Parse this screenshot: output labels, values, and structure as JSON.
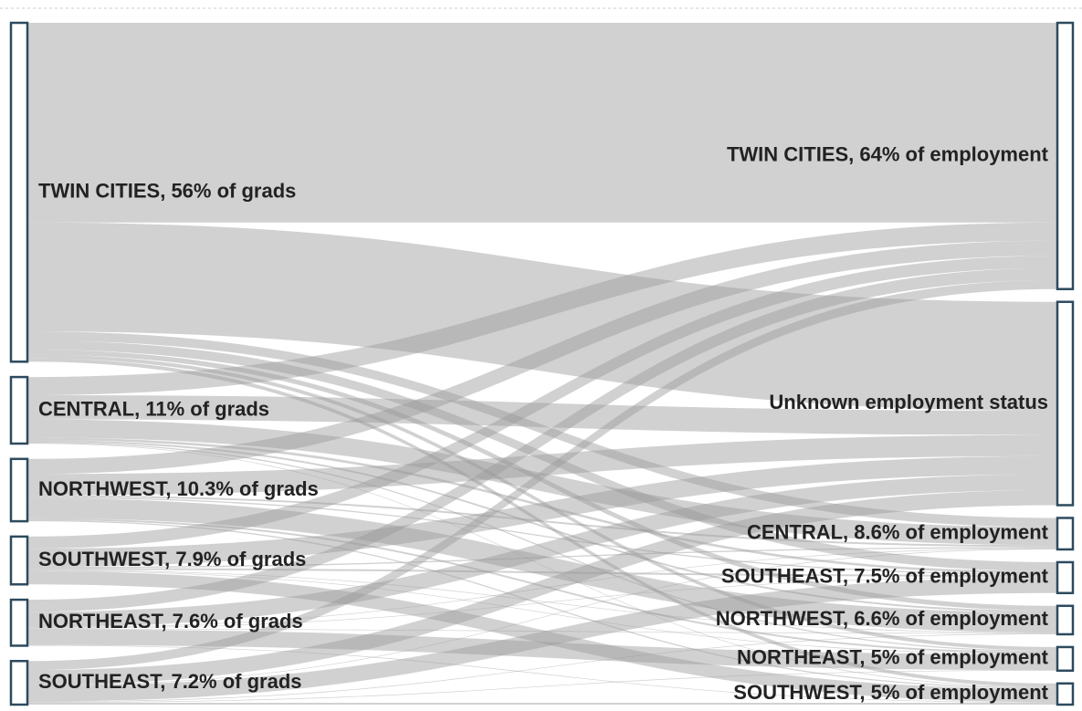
{
  "chart_data": {
    "type": "sankey",
    "sources": [
      "TWIN CITIES, 56% of grads",
      "CENTRAL, 11% of grads",
      "NORTHWEST, 10.3% of grads",
      "SOUTHWEST, 7.9% of grads",
      "NORTHEAST, 7.6% of grads",
      "SOUTHEAST, 7.2% of grads"
    ],
    "targets": [
      "TWIN CITIES, 64% of employment",
      "Unknown employment status",
      "CENTRAL, 8.6% of employment",
      "SOUTHEAST, 7.5% of employment",
      "NORTHWEST, 6.6% of employment",
      "NORTHEAST, 5% of employment",
      "SOUTHWEST, 5% of employment"
    ],
    "links": [
      {
        "source": 0,
        "target": 0,
        "value": 33
      },
      {
        "source": 0,
        "target": 1,
        "value": 18
      },
      {
        "source": 0,
        "target": 2,
        "value": 1.5
      },
      {
        "source": 0,
        "target": 3,
        "value": 1.5
      },
      {
        "source": 0,
        "target": 4,
        "value": 0.8
      },
      {
        "source": 0,
        "target": 5,
        "value": 0.6
      },
      {
        "source": 0,
        "target": 6,
        "value": 0.6
      },
      {
        "source": 1,
        "target": 0,
        "value": 3
      },
      {
        "source": 1,
        "target": 1,
        "value": 4
      },
      {
        "source": 1,
        "target": 2,
        "value": 3
      },
      {
        "source": 1,
        "target": 3,
        "value": 0.4
      },
      {
        "source": 1,
        "target": 4,
        "value": 0.3
      },
      {
        "source": 1,
        "target": 5,
        "value": 0.2
      },
      {
        "source": 1,
        "target": 6,
        "value": 0.1
      },
      {
        "source": 2,
        "target": 0,
        "value": 2.5
      },
      {
        "source": 2,
        "target": 1,
        "value": 3.5
      },
      {
        "source": 2,
        "target": 2,
        "value": 0.3
      },
      {
        "source": 2,
        "target": 3,
        "value": 0.2
      },
      {
        "source": 2,
        "target": 4,
        "value": 3.3
      },
      {
        "source": 2,
        "target": 5,
        "value": 0.3
      },
      {
        "source": 2,
        "target": 6,
        "value": 0.2
      },
      {
        "source": 3,
        "target": 0,
        "value": 2
      },
      {
        "source": 3,
        "target": 1,
        "value": 3
      },
      {
        "source": 3,
        "target": 2,
        "value": 0.2
      },
      {
        "source": 3,
        "target": 3,
        "value": 0.3
      },
      {
        "source": 3,
        "target": 4,
        "value": 0.1
      },
      {
        "source": 3,
        "target": 5,
        "value": 0.1
      },
      {
        "source": 3,
        "target": 6,
        "value": 2.2
      },
      {
        "source": 4,
        "target": 0,
        "value": 2
      },
      {
        "source": 4,
        "target": 1,
        "value": 2.6
      },
      {
        "source": 4,
        "target": 2,
        "value": 0.1
      },
      {
        "source": 4,
        "target": 3,
        "value": 0.1
      },
      {
        "source": 4,
        "target": 4,
        "value": 0.1
      },
      {
        "source": 4,
        "target": 5,
        "value": 2.6
      },
      {
        "source": 4,
        "target": 6,
        "value": 0.1
      },
      {
        "source": 5,
        "target": 0,
        "value": 1.5
      },
      {
        "source": 5,
        "target": 1,
        "value": 2.5
      },
      {
        "source": 5,
        "target": 2,
        "value": 0.1
      },
      {
        "source": 5,
        "target": 3,
        "value": 2.6
      },
      {
        "source": 5,
        "target": 4,
        "value": 0.1
      },
      {
        "source": 5,
        "target": 5,
        "value": 0.1
      },
      {
        "source": 5,
        "target": 6,
        "value": 0.3
      }
    ],
    "color": "#9a9a9a",
    "node_color": "#2d4a5e"
  }
}
